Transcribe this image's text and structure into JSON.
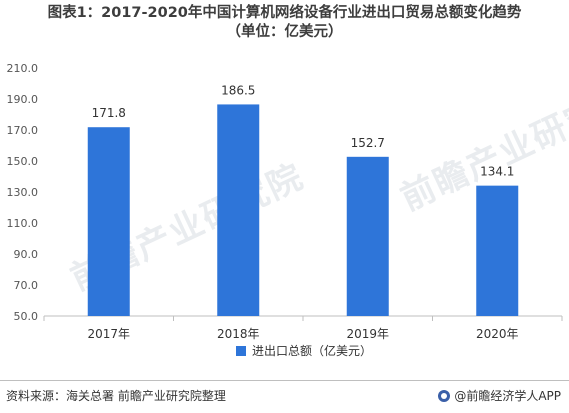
{
  "title_line1": "图表1：2017-2020年中国计算机网络设备行业进出口贸易总额变化趋势",
  "title_line2": "（单位：亿美元）",
  "chart_data": {
    "type": "bar",
    "categories": [
      "2017年",
      "2018年",
      "2019年",
      "2020年"
    ],
    "series": [
      {
        "name": "进出口总额（亿美元）",
        "values": [
          171.8,
          186.5,
          152.7,
          134.1
        ]
      }
    ],
    "data_labels": [
      "171.8",
      "186.5",
      "152.7",
      "134.1"
    ],
    "ylim": [
      50.0,
      210.0
    ],
    "yticks": [
      "50.0",
      "70.0",
      "90.0",
      "110.0",
      "130.0",
      "150.0",
      "170.0",
      "190.0",
      "210.0"
    ],
    "grid": false,
    "legend_position": "bottom-center",
    "bar_color": "#2e75d9"
  },
  "watermark": "前瞻产业研究院",
  "footer": {
    "source": "资料来源：海关总署 前瞻产业研究院整理",
    "brand": "@前瞻经济学人APP"
  }
}
